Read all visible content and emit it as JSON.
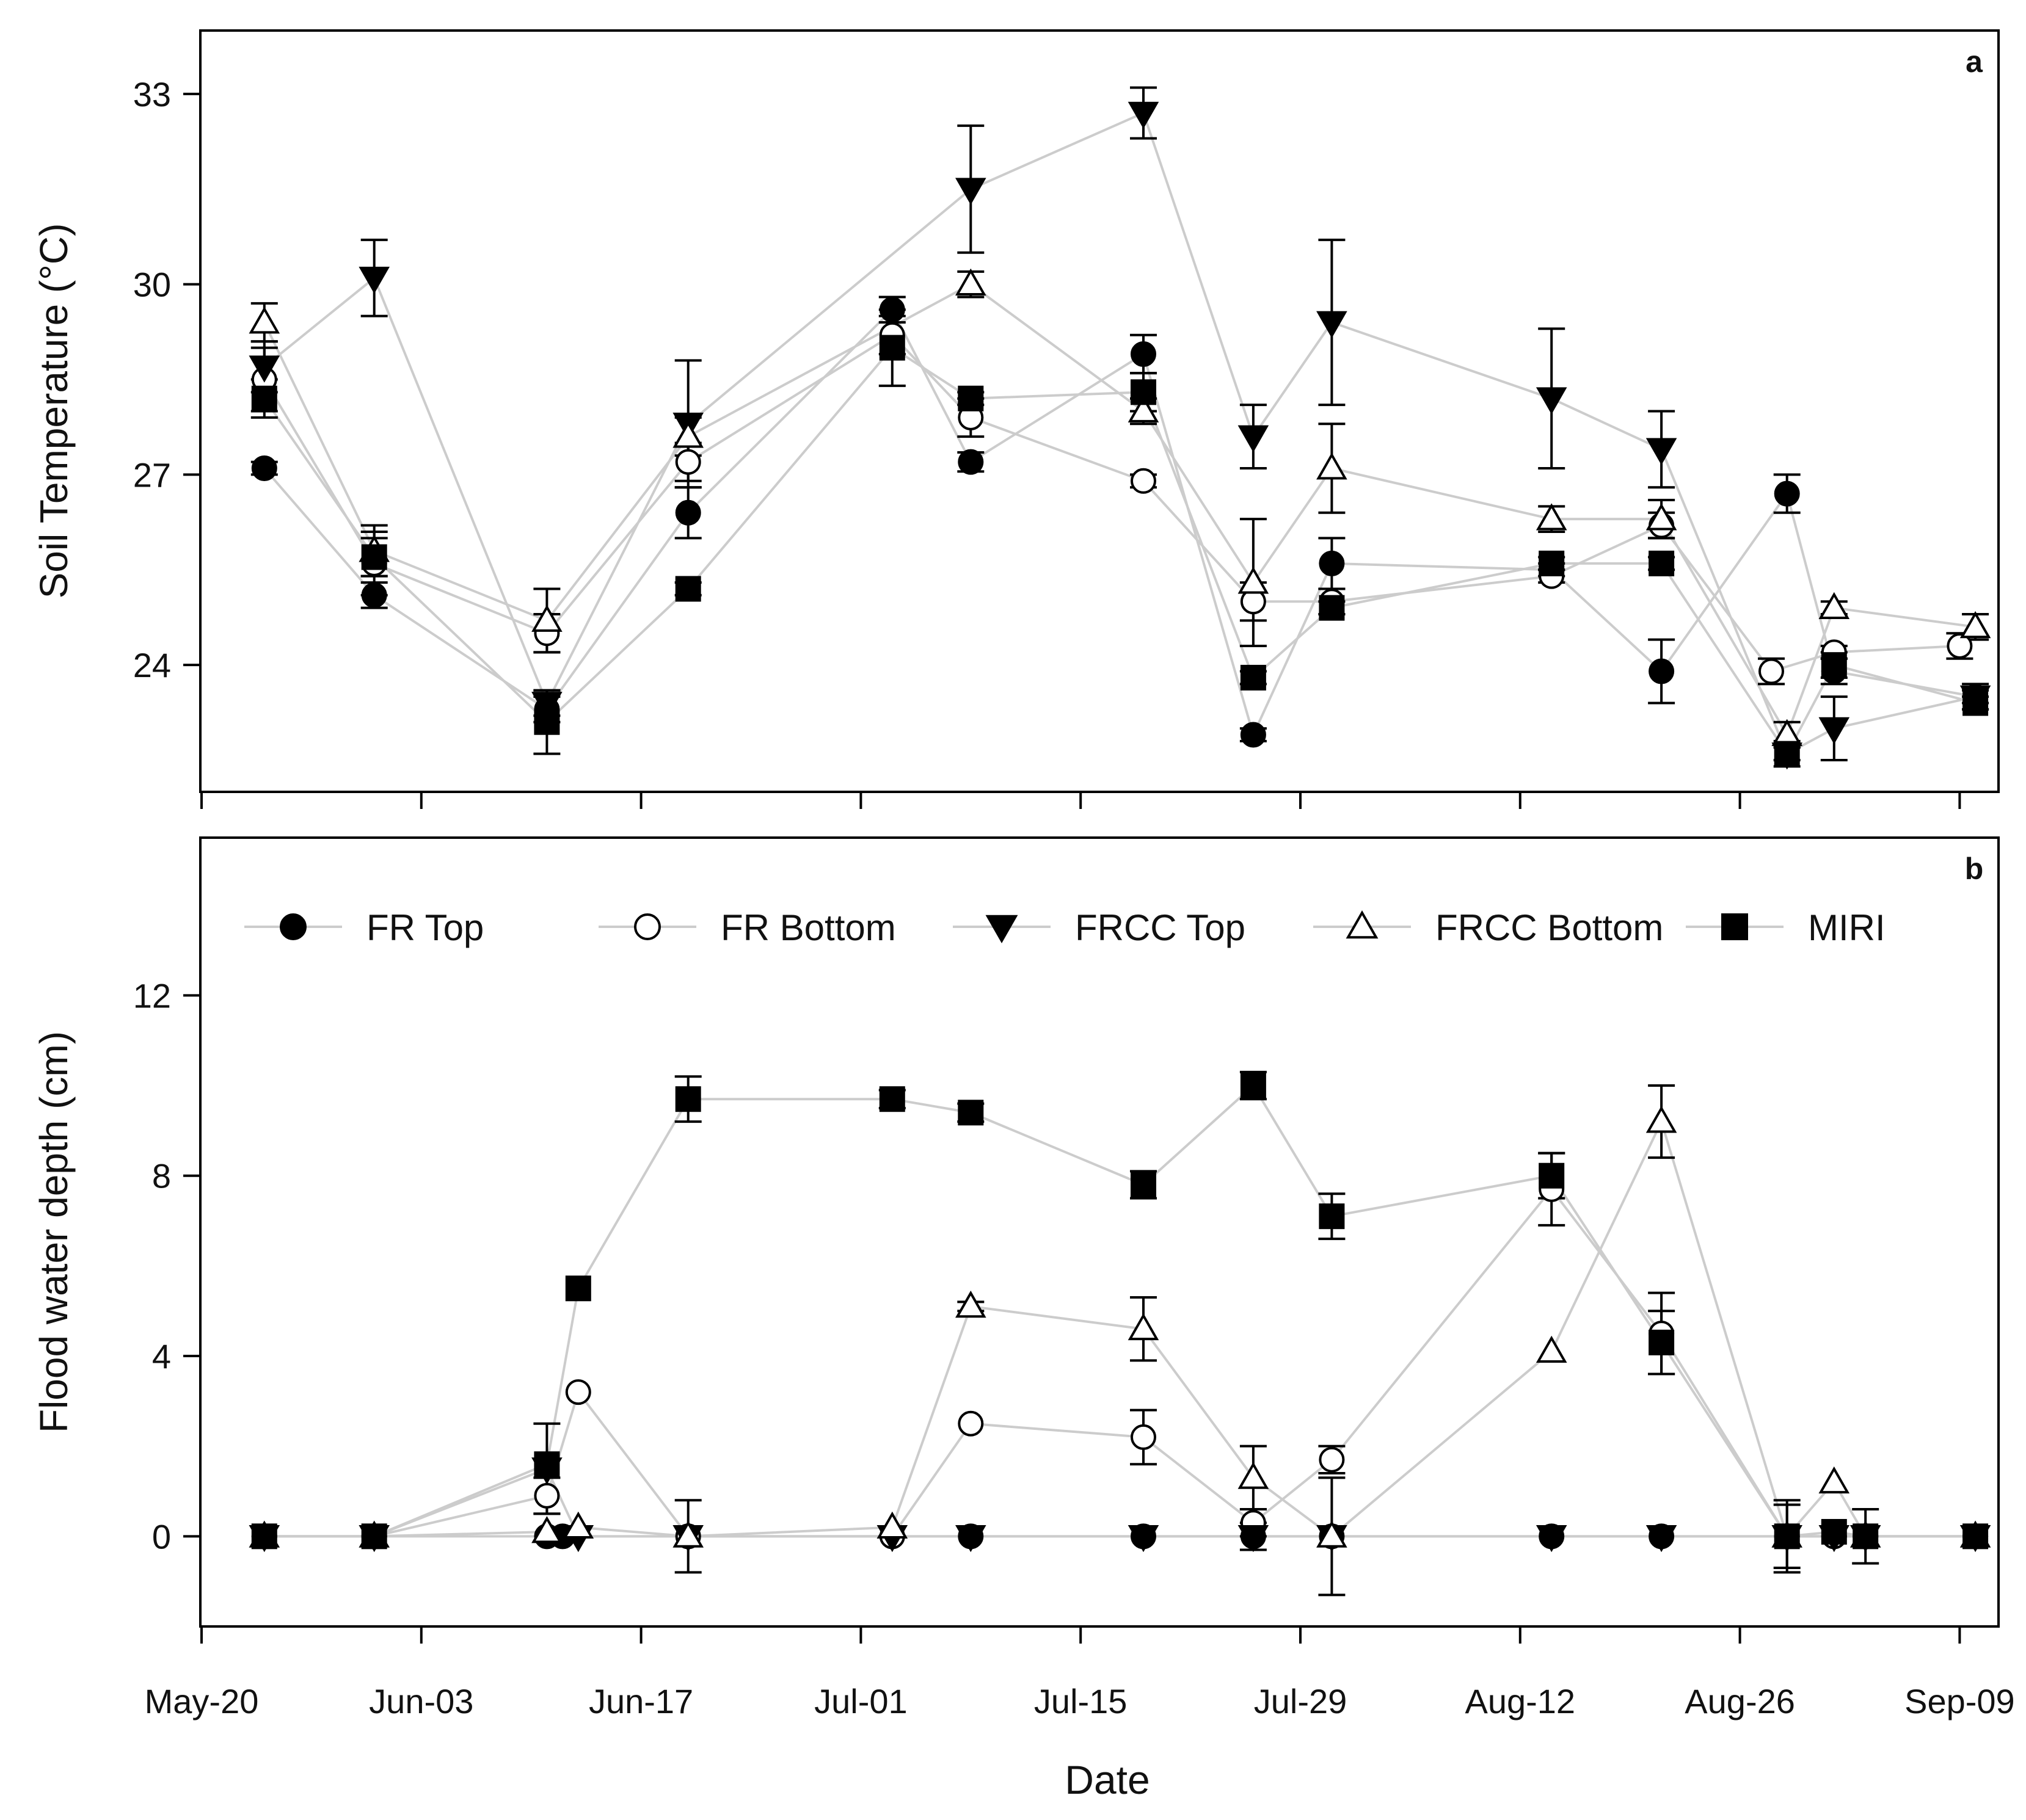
{
  "figure": {
    "xlabel": "Date",
    "x_tick_labels": [
      "May-20",
      "Jun-03",
      "Jun-17",
      "Jul-01",
      "Jul-15",
      "Jul-29",
      "Aug-12",
      "Aug-26",
      "Sep-09"
    ]
  },
  "legend": {
    "placement": "top",
    "entries": [
      {
        "name": "FR Top",
        "marker": "filled-circle"
      },
      {
        "name": "FR Bottom",
        "marker": "open-circle"
      },
      {
        "name": "FRCC Top",
        "marker": "filled-triangle-down"
      },
      {
        "name": "FRCC Bottom",
        "marker": "open-triangle-up"
      },
      {
        "name": "MIRI",
        "marker": "filled-square"
      }
    ]
  },
  "colors": {
    "line": "#cccccc",
    "marker": "#000000",
    "axis": "#000000",
    "background": "#ffffff"
  },
  "chart_data": [
    {
      "panel_label": "a",
      "type": "line",
      "title": "",
      "xlabel": "Date",
      "ylabel": "Soil Temperature (°C)",
      "x_unit": "days since May-20",
      "xlim": [
        0,
        112
      ],
      "ylim": [
        22,
        34
      ],
      "yticks": [
        24,
        27,
        30,
        33
      ],
      "series": [
        {
          "name": "FR Top",
          "marker": "filled-circle",
          "x": [
            4,
            11,
            22,
            31,
            44,
            49,
            60,
            67,
            72,
            86,
            93,
            101,
            104,
            113
          ],
          "y": [
            27.1,
            25.1,
            23.3,
            26.4,
            29.6,
            27.2,
            28.9,
            22.9,
            25.6,
            25.5,
            23.9,
            26.7,
            23.9,
            23.5
          ],
          "err": [
            0.1,
            0.2,
            0.2,
            0.4,
            0.2,
            0.15,
            0.3,
            0.1,
            0.4,
            0.1,
            0.5,
            0.3,
            0.2,
            0.1
          ]
        },
        {
          "name": "FR Bottom",
          "marker": "open-circle",
          "x": [
            4,
            11,
            22,
            31,
            44,
            49,
            60,
            67,
            72,
            86,
            93,
            100,
            104,
            112
          ],
          "y": [
            28.5,
            25.6,
            24.5,
            27.2,
            29.2,
            27.9,
            26.9,
            25.0,
            25.0,
            25.4,
            26.2,
            23.9,
            24.2,
            24.3
          ],
          "err": [
            0.5,
            0.5,
            0.3,
            0.3,
            0.3,
            0.3,
            0.1,
            0.3,
            0.2,
            0.1,
            0.2,
            0.2,
            0.1,
            0.2
          ]
        },
        {
          "name": "FRCC Top",
          "marker": "filled-triangle-down",
          "x": [
            4,
            11,
            22,
            31,
            49,
            60,
            67,
            72,
            86,
            93,
            101,
            104,
            113
          ],
          "y": [
            28.7,
            30.1,
            23.4,
            27.8,
            31.5,
            32.7,
            27.6,
            29.4,
            28.2,
            27.4,
            22.6,
            23.0,
            23.5
          ],
          "err": [
            0.4,
            0.6,
            0.2,
            1.0,
            1.0,
            0.4,
            0.5,
            1.3,
            1.1,
            0.6,
            0.2,
            0.5,
            0.2
          ]
        },
        {
          "name": "FRCC Bottom",
          "marker": "open-triangle-up",
          "x": [
            4,
            11,
            22,
            31,
            49,
            60,
            67,
            72,
            86,
            93,
            101,
            104,
            113
          ],
          "y": [
            29.4,
            25.8,
            24.7,
            27.6,
            30.0,
            28.0,
            25.3,
            27.1,
            26.3,
            26.3,
            22.9,
            24.9,
            24.6
          ],
          "err": [
            0.3,
            0.4,
            0.5,
            0.3,
            0.2,
            0.2,
            1.0,
            0.7,
            0.2,
            0.3,
            0.2,
            0.1,
            0.2
          ]
        },
        {
          "name": "MIRI",
          "marker": "filled-square",
          "x": [
            4,
            11,
            22,
            31,
            44,
            49,
            60,
            67,
            72,
            86,
            93,
            101,
            104,
            113
          ],
          "y": [
            28.2,
            25.7,
            23.1,
            25.2,
            29.0,
            28.2,
            28.3,
            23.8,
            24.9,
            25.6,
            25.6,
            22.6,
            24.0,
            23.4
          ],
          "err": [
            0.3,
            0.3,
            0.5,
            0.1,
            0.6,
            0.1,
            0.3,
            0.1,
            0.1,
            0.1,
            0.1,
            0.1,
            0.2,
            0.1
          ]
        }
      ]
    },
    {
      "panel_label": "b",
      "type": "line",
      "title": "",
      "xlabel": "Date",
      "ylabel": "Flood water depth (cm)",
      "x_unit": "days since May-20",
      "xlim": [
        0,
        112
      ],
      "ylim": [
        -2,
        15.5
      ],
      "yticks": [
        0,
        4,
        8,
        12
      ],
      "series": [
        {
          "name": "FR Top",
          "marker": "filled-circle",
          "x": [
            4,
            11,
            22,
            23,
            31,
            44,
            49,
            60,
            67,
            72,
            86,
            93,
            101,
            104,
            106,
            113
          ],
          "y": [
            0,
            0,
            0,
            0,
            0,
            0,
            0,
            0,
            0,
            0,
            0,
            0,
            0,
            0,
            0,
            0
          ],
          "err": [
            0,
            0,
            0,
            0,
            0,
            0,
            0,
            0,
            0,
            0,
            0,
            0,
            0,
            0,
            0,
            0
          ]
        },
        {
          "name": "FR Bottom",
          "marker": "open-circle",
          "x": [
            4,
            11,
            22,
            24,
            31,
            44,
            49,
            60,
            67,
            72,
            86,
            93,
            101,
            104,
            106,
            113
          ],
          "y": [
            0,
            0,
            0.9,
            3.2,
            0,
            0,
            2.5,
            2.2,
            0.3,
            1.7,
            7.7,
            4.5,
            0,
            0,
            0,
            0
          ],
          "err": [
            0,
            0,
            0.4,
            0,
            0,
            0,
            0,
            0.6,
            0.3,
            0.3,
            0.8,
            0.9,
            0.7,
            0,
            0,
            0
          ]
        },
        {
          "name": "FRCC Top",
          "marker": "filled-triangle-down",
          "x": [
            4,
            11,
            22,
            24,
            31,
            44,
            49,
            60,
            67,
            72,
            86,
            93,
            101,
            104,
            106,
            113
          ],
          "y": [
            0,
            0,
            1.5,
            0,
            0,
            0,
            0,
            0,
            0,
            0,
            0,
            0,
            0,
            0,
            0,
            0
          ],
          "err": [
            0,
            0,
            1.0,
            0,
            0.8,
            0,
            0,
            0,
            0.3,
            1.3,
            0,
            0,
            0.8,
            0,
            0.6,
            0
          ]
        },
        {
          "name": "FRCC Bottom",
          "marker": "open-triangle-up",
          "x": [
            4,
            11,
            22,
            24,
            31,
            44,
            49,
            60,
            67,
            72,
            86,
            93,
            101,
            104,
            106,
            113
          ],
          "y": [
            0,
            0,
            0.1,
            0.2,
            0,
            0.2,
            5.1,
            4.6,
            1.3,
            0,
            4.1,
            9.2,
            0,
            1.2,
            0,
            0
          ],
          "err": [
            0,
            0,
            0,
            0,
            0,
            0,
            0.1,
            0.7,
            0.7,
            0,
            0,
            0.8,
            0,
            0,
            0,
            0
          ]
        },
        {
          "name": "MIRI",
          "marker": "filled-square",
          "x": [
            4,
            11,
            22,
            24,
            31,
            44,
            49,
            60,
            67,
            72,
            86,
            93,
            101,
            104,
            106,
            113
          ],
          "y": [
            0,
            0,
            1.6,
            5.5,
            9.7,
            9.7,
            9.4,
            7.8,
            10.0,
            7.1,
            8.0,
            4.3,
            0,
            0.1,
            0,
            0
          ],
          "err": [
            0,
            0,
            0,
            0,
            0.5,
            0.2,
            0.2,
            0.3,
            0.3,
            0.5,
            0.5,
            0.7,
            0,
            0,
            0,
            0
          ]
        }
      ]
    }
  ]
}
